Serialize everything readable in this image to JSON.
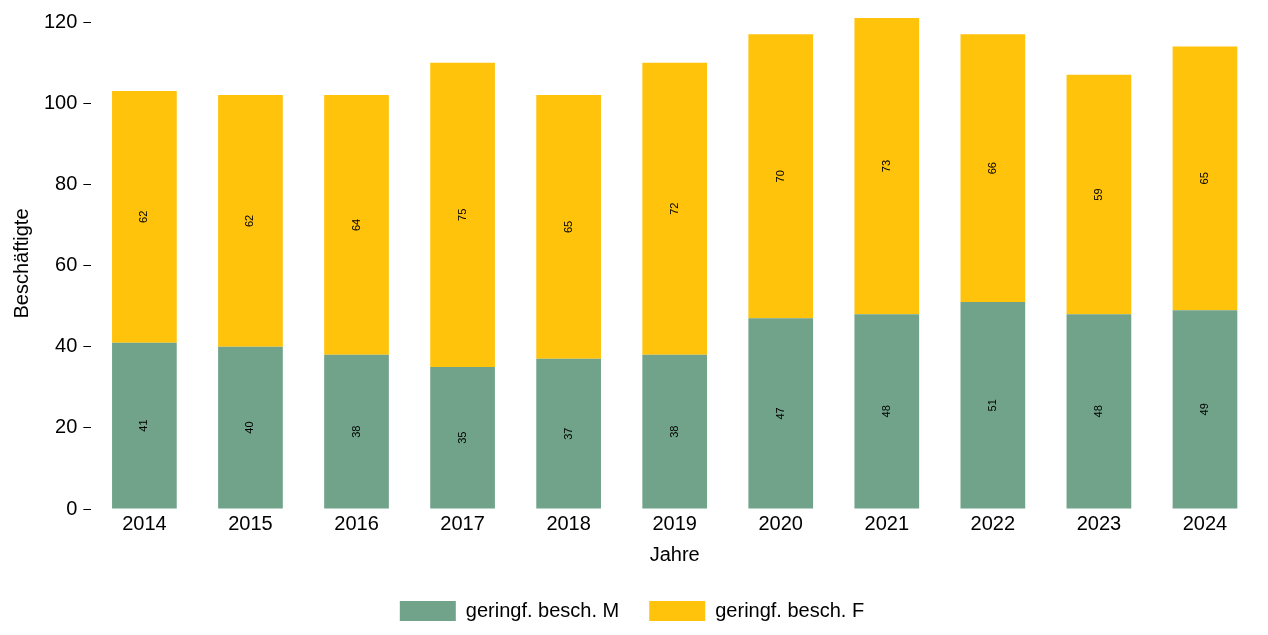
{
  "chart_data": {
    "type": "bar",
    "stacked": true,
    "xlabel": "Jahre",
    "ylabel": "Beschäftigte",
    "categories": [
      "2014",
      "2015",
      "2016",
      "2017",
      "2018",
      "2019",
      "2020",
      "2021",
      "2022",
      "2023",
      "2024"
    ],
    "series": [
      {
        "name": "geringf. besch. M",
        "color": "#70a38a",
        "values": [
          41,
          40,
          38,
          35,
          37,
          38,
          47,
          48,
          51,
          48,
          49
        ]
      },
      {
        "name": "geringf. besch. F",
        "color": "#ffc30b",
        "values": [
          62,
          62,
          64,
          75,
          65,
          72,
          70,
          73,
          66,
          59,
          65
        ]
      }
    ],
    "ylim": [
      0,
      121
    ],
    "yticks": [
      0,
      20,
      40,
      60,
      80,
      100,
      120
    ],
    "grid": false,
    "legend": "bottom",
    "data_labels": true
  }
}
